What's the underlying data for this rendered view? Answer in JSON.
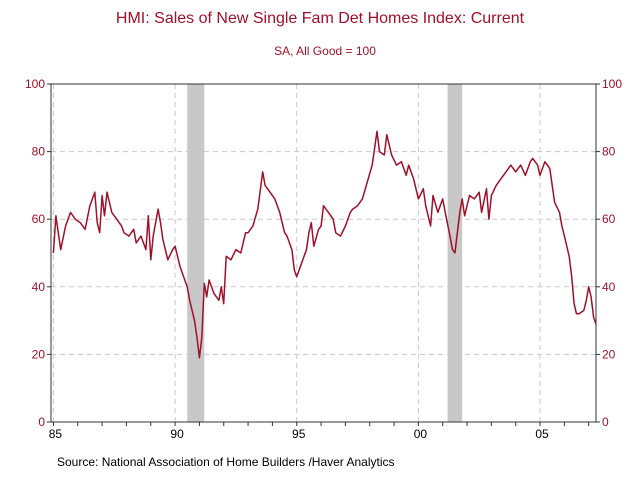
{
  "chart_data": {
    "type": "line",
    "title": "HMI: Sales of New Single Fam Det Homes Index: Current",
    "subtitle": "SA, All Good = 100",
    "source": "Source:  National Association of Home Builders /Haver Analytics",
    "xlim": [
      1984.9,
      2007.3
    ],
    "ylim": [
      0,
      100
    ],
    "y_ticks": [
      0,
      20,
      40,
      60,
      80,
      100
    ],
    "x_ticks": [
      {
        "year": 1985,
        "label": "85"
      },
      {
        "year": 1990,
        "label": "90"
      },
      {
        "year": 1995,
        "label": "95"
      },
      {
        "year": 2000,
        "label": "00"
      },
      {
        "year": 2005,
        "label": "05"
      }
    ],
    "recessions": [
      [
        1990.5,
        1991.2
      ],
      [
        2001.2,
        2001.8
      ]
    ],
    "grid": true,
    "colors": {
      "line": "#a0102a",
      "axis_text": "#a0102a",
      "recession": "#c8c8c8",
      "grid": "#c8c8c8"
    },
    "series": [
      {
        "name": "HMI: Sales of New Single Fam Det Homes Index: Current",
        "points": [
          [
            1985.0,
            50
          ],
          [
            1985.1,
            61
          ],
          [
            1985.3,
            51
          ],
          [
            1985.5,
            58
          ],
          [
            1985.7,
            62
          ],
          [
            1985.9,
            60
          ],
          [
            1986.1,
            59
          ],
          [
            1986.3,
            57
          ],
          [
            1986.5,
            64
          ],
          [
            1986.7,
            68
          ],
          [
            1986.8,
            59
          ],
          [
            1986.9,
            56
          ],
          [
            1987.0,
            67
          ],
          [
            1987.1,
            61
          ],
          [
            1987.2,
            68
          ],
          [
            1987.4,
            62
          ],
          [
            1987.6,
            60
          ],
          [
            1987.8,
            58
          ],
          [
            1987.9,
            56
          ],
          [
            1988.1,
            55
          ],
          [
            1988.3,
            57
          ],
          [
            1988.4,
            53
          ],
          [
            1988.6,
            55
          ],
          [
            1988.8,
            51
          ],
          [
            1988.9,
            61
          ],
          [
            1989.0,
            48
          ],
          [
            1989.1,
            55
          ],
          [
            1989.3,
            63
          ],
          [
            1989.4,
            59
          ],
          [
            1989.5,
            54
          ],
          [
            1989.7,
            48
          ],
          [
            1989.9,
            51
          ],
          [
            1990.0,
            52
          ],
          [
            1990.2,
            46
          ],
          [
            1990.4,
            42
          ],
          [
            1990.5,
            40
          ],
          [
            1990.6,
            36
          ],
          [
            1990.8,
            30
          ],
          [
            1990.9,
            25
          ],
          [
            1991.0,
            19
          ],
          [
            1991.1,
            25
          ],
          [
            1991.2,
            41
          ],
          [
            1991.3,
            37
          ],
          [
            1991.4,
            42
          ],
          [
            1991.6,
            38
          ],
          [
            1991.8,
            36
          ],
          [
            1991.9,
            40
          ],
          [
            1992.0,
            35
          ],
          [
            1992.1,
            49
          ],
          [
            1992.3,
            48
          ],
          [
            1992.5,
            51
          ],
          [
            1992.7,
            50
          ],
          [
            1992.9,
            56
          ],
          [
            1993.0,
            56
          ],
          [
            1993.2,
            58
          ],
          [
            1993.4,
            63
          ],
          [
            1993.6,
            74
          ],
          [
            1993.7,
            70
          ],
          [
            1993.9,
            68
          ],
          [
            1994.1,
            66
          ],
          [
            1994.3,
            62
          ],
          [
            1994.5,
            56
          ],
          [
            1994.6,
            55
          ],
          [
            1994.8,
            51
          ],
          [
            1994.9,
            45
          ],
          [
            1995.0,
            43
          ],
          [
            1995.2,
            47
          ],
          [
            1995.4,
            51
          ],
          [
            1995.5,
            56
          ],
          [
            1995.6,
            59
          ],
          [
            1995.7,
            52
          ],
          [
            1995.9,
            57
          ],
          [
            1996.0,
            58
          ],
          [
            1996.1,
            64
          ],
          [
            1996.3,
            62
          ],
          [
            1996.5,
            60
          ],
          [
            1996.6,
            56
          ],
          [
            1996.8,
            55
          ],
          [
            1997.0,
            58
          ],
          [
            1997.2,
            62
          ],
          [
            1997.3,
            63
          ],
          [
            1997.5,
            64
          ],
          [
            1997.7,
            66
          ],
          [
            1997.9,
            71
          ],
          [
            1998.1,
            76
          ],
          [
            1998.3,
            86
          ],
          [
            1998.4,
            80
          ],
          [
            1998.6,
            79
          ],
          [
            1998.7,
            85
          ],
          [
            1998.9,
            79
          ],
          [
            1999.1,
            76
          ],
          [
            1999.3,
            77
          ],
          [
            1999.5,
            73
          ],
          [
            1999.6,
            76
          ],
          [
            1999.8,
            72
          ],
          [
            2000.0,
            66
          ],
          [
            2000.2,
            69
          ],
          [
            2000.3,
            64
          ],
          [
            2000.5,
            58
          ],
          [
            2000.6,
            67
          ],
          [
            2000.8,
            62
          ],
          [
            2001.0,
            66
          ],
          [
            2001.1,
            62
          ],
          [
            2001.3,
            55
          ],
          [
            2001.4,
            51
          ],
          [
            2001.5,
            50
          ],
          [
            2001.7,
            62
          ],
          [
            2001.8,
            66
          ],
          [
            2001.9,
            61
          ],
          [
            2002.1,
            67
          ],
          [
            2002.3,
            66
          ],
          [
            2002.5,
            68
          ],
          [
            2002.6,
            62
          ],
          [
            2002.8,
            69
          ],
          [
            2002.9,
            60
          ],
          [
            2003.0,
            67
          ],
          [
            2003.2,
            70
          ],
          [
            2003.4,
            72
          ],
          [
            2003.6,
            74
          ],
          [
            2003.8,
            76
          ],
          [
            2004.0,
            74
          ],
          [
            2004.2,
            76
          ],
          [
            2004.4,
            73
          ],
          [
            2004.6,
            77
          ],
          [
            2004.7,
            78
          ],
          [
            2004.9,
            76
          ],
          [
            2005.0,
            73
          ],
          [
            2005.2,
            77
          ],
          [
            2005.4,
            75
          ],
          [
            2005.5,
            70
          ],
          [
            2005.6,
            65
          ],
          [
            2005.8,
            62
          ],
          [
            2005.9,
            58
          ],
          [
            2006.0,
            55
          ],
          [
            2006.2,
            49
          ],
          [
            2006.3,
            43
          ],
          [
            2006.4,
            35
          ],
          [
            2006.5,
            32
          ],
          [
            2006.6,
            32
          ],
          [
            2006.8,
            33
          ],
          [
            2006.9,
            36
          ],
          [
            2007.0,
            40
          ],
          [
            2007.1,
            37
          ],
          [
            2007.2,
            31
          ],
          [
            2007.3,
            29
          ]
        ]
      }
    ]
  }
}
